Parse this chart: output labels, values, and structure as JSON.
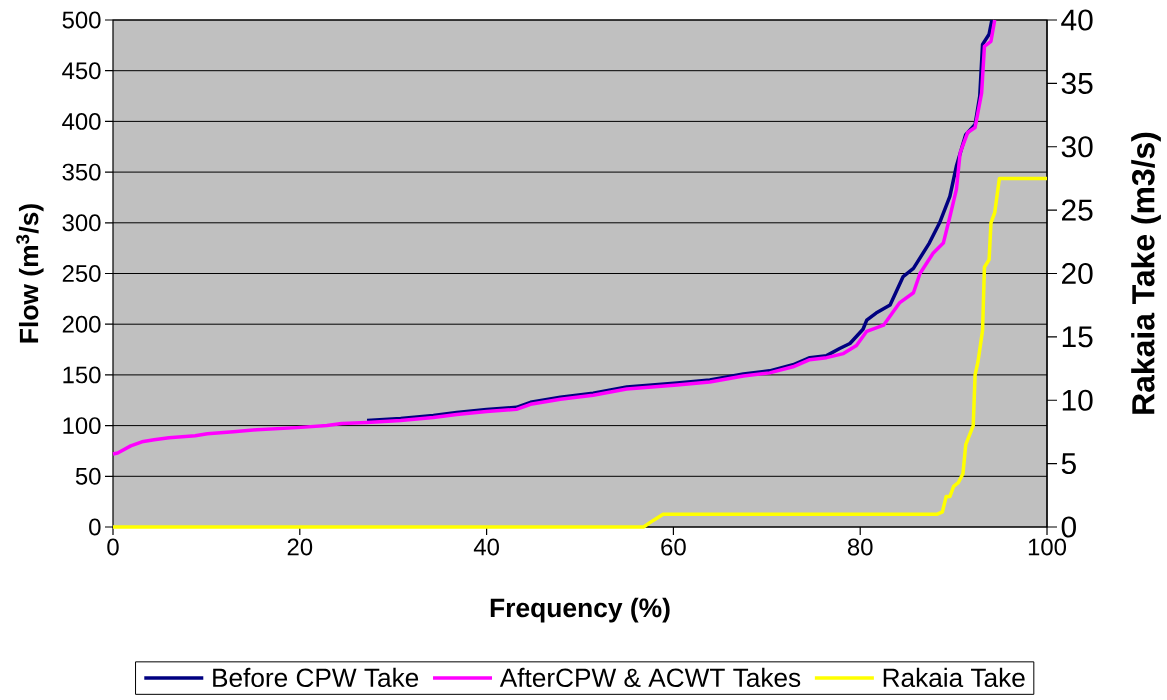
{
  "chart_data": {
    "type": "line",
    "xlabel": "Frequency (%)",
    "ylabel": "Flow (m$^{3}$/s)",
    "y2label": "Rakaia Take (m3/s)",
    "xlim": [
      0,
      100
    ],
    "xticks": [
      0,
      20,
      40,
      60,
      80,
      100
    ],
    "ylim": [
      0,
      500
    ],
    "yticks": [
      0,
      50,
      100,
      150,
      200,
      250,
      300,
      350,
      400,
      450,
      500
    ],
    "y2lim": [
      0,
      40
    ],
    "y2ticks": [
      0,
      5,
      10,
      15,
      20,
      25,
      30,
      35,
      40
    ],
    "grid": "y",
    "legend": "bottom",
    "marker": "none",
    "series": [
      {
        "name": "Before CPW Take",
        "color": "#000080",
        "x": [
          27.2,
          30.8,
          34.3,
          36.8,
          40,
          43.2,
          44.7,
          47.9,
          51.4,
          55,
          60.4,
          63.9,
          67.5,
          70.3,
          72.8,
          74.6,
          76.4,
          77.8,
          78.9,
          80.3,
          80.7,
          81.7,
          83.2,
          84.6,
          85.7,
          87.4,
          88.5,
          89.6,
          90.3,
          91.3,
          92.3,
          92.8,
          93.1,
          93.8,
          94.1
        ],
        "values": [
          105,
          107,
          110,
          113,
          116,
          118,
          123,
          128,
          132,
          138,
          142,
          145,
          151,
          154,
          160,
          167,
          169,
          176,
          181,
          195,
          204,
          211,
          219,
          247,
          255,
          280,
          300,
          326,
          356,
          387,
          397,
          425,
          476,
          486,
          500
        ]
      },
      {
        "name": "AfterCPW & ACWT Takes",
        "color": "#ff00ff",
        "x": [
          0,
          0.5,
          1.9,
          3.1,
          4.4,
          6.0,
          8.8,
          10.1,
          12.9,
          15.4,
          19.7,
          22.9,
          24.5,
          27.2,
          30.8,
          34.3,
          36.8,
          40,
          43.2,
          44.7,
          47.9,
          51.4,
          55,
          60.4,
          63.9,
          67.5,
          70.3,
          72.8,
          74.6,
          76.4,
          78.2,
          79.6,
          80.7,
          82.5,
          84.2,
          85.7,
          86.4,
          87.8,
          88.9,
          89.6,
          90.3,
          90.7,
          91.5,
          92.3,
          93.0,
          93.3,
          94.0,
          94.4
        ],
        "values": [
          72,
          73,
          80,
          84,
          86,
          88,
          90,
          92,
          94,
          96,
          98,
          100,
          102,
          103,
          105,
          108,
          111,
          114,
          116,
          121,
          126,
          130,
          136,
          140,
          143,
          149,
          152,
          158,
          165,
          167,
          171,
          179,
          193,
          199,
          221,
          231,
          250,
          270,
          280,
          306,
          333,
          369,
          389,
          394,
          428,
          474,
          479,
          500
        ]
      },
      {
        "name": "Rakaia Take",
        "color": "#ffff00",
        "axis": "y2",
        "x": [
          0,
          56.8,
          57.8,
          58.9,
          88.2,
          88.8,
          89.2,
          89.6,
          90.0,
          90.5,
          91.0,
          91.3,
          92.1,
          92.3,
          92.6,
          93.1,
          93.3,
          93.8,
          94.0,
          94.4,
          94.9,
          100
        ],
        "values": [
          0,
          0,
          0.5,
          1,
          1,
          1.2,
          2.4,
          2.4,
          3.2,
          3.5,
          4.2,
          6.5,
          8,
          12,
          13,
          15.5,
          20.5,
          21.1,
          24,
          24.8,
          27.5,
          27.5
        ]
      }
    ]
  }
}
